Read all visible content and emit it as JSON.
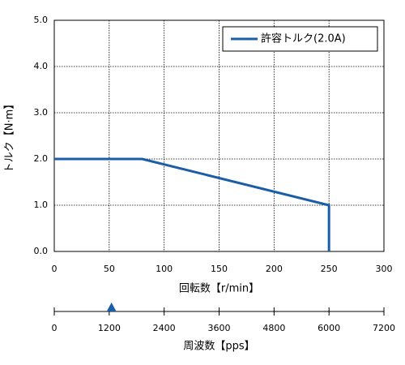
{
  "chart_data": [
    {
      "type": "line",
      "xlabel": "回転数【r/min】",
      "ylabel": "トルク【N·m】",
      "xlim": [
        0,
        300
      ],
      "xticks": [
        0,
        50,
        100,
        150,
        200,
        250,
        300
      ],
      "ylim": [
        0,
        5
      ],
      "yticks": [
        {
          "value": 0,
          "label": "0.0"
        },
        {
          "value": 1,
          "label": "1.0"
        },
        {
          "value": 2,
          "label": "2.0"
        },
        {
          "value": 3,
          "label": "3.0"
        },
        {
          "value": 4,
          "label": "4.0"
        },
        {
          "value": 5,
          "label": "5.0"
        }
      ],
      "grid": true,
      "legend": "upper right",
      "series": [
        {
          "name": "許容トルク(2.0A)",
          "color": "#1b5ea8",
          "x": [
            0,
            80,
            250,
            250
          ],
          "values": [
            2,
            2,
            1,
            0
          ]
        }
      ]
    },
    {
      "type": "axis",
      "xlabel": "周波数【pps】",
      "xlim": [
        0,
        7200
      ],
      "xticks": [
        0,
        1200,
        2400,
        3600,
        4800,
        6000,
        7200
      ],
      "marker": 1250,
      "marker_color": "#1b5ea8"
    }
  ]
}
